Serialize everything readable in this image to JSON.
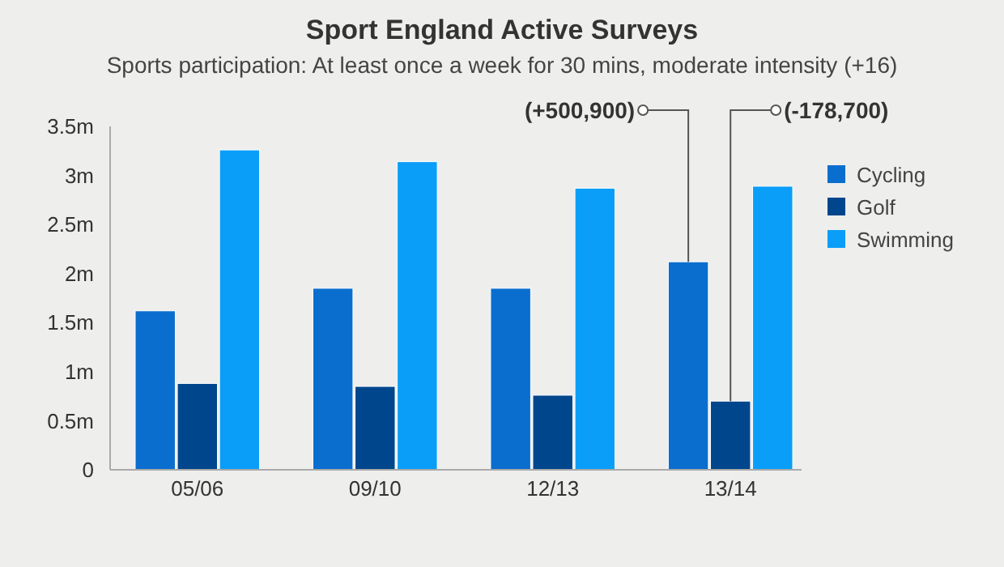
{
  "chart_data": {
    "type": "bar",
    "title": "Sport England Active Surveys",
    "subtitle": "Sports participation: At least once a week for 30 mins, moderate intensity (+16)",
    "categories": [
      "05/06",
      "09/10",
      "12/13",
      "13/14"
    ],
    "series": [
      {
        "name": "Cycling",
        "color": "#0a6ecf",
        "values": [
          1.62,
          1.85,
          1.85,
          2.12
        ]
      },
      {
        "name": "Golf",
        "color": "#00468c",
        "values": [
          0.88,
          0.85,
          0.76,
          0.7
        ]
      },
      {
        "name": "Swimming",
        "color": "#0a9ef8",
        "values": [
          3.26,
          3.14,
          2.87,
          2.89
        ]
      }
    ],
    "ylim": [
      0,
      3.5
    ],
    "yticks": [
      {
        "value": 0,
        "label": "0"
      },
      {
        "value": 0.5,
        "label": "0.5m"
      },
      {
        "value": 1,
        "label": "1m"
      },
      {
        "value": 1.5,
        "label": "1.5m"
      },
      {
        "value": 2,
        "label": "2m"
      },
      {
        "value": 2.5,
        "label": "2.5m"
      },
      {
        "value": 3,
        "label": "3m"
      },
      {
        "value": 3.5,
        "label": "3.5m"
      }
    ],
    "annotations": [
      "(+500,900)",
      "(-178,700)"
    ],
    "legend": "right",
    "grid": false
  }
}
